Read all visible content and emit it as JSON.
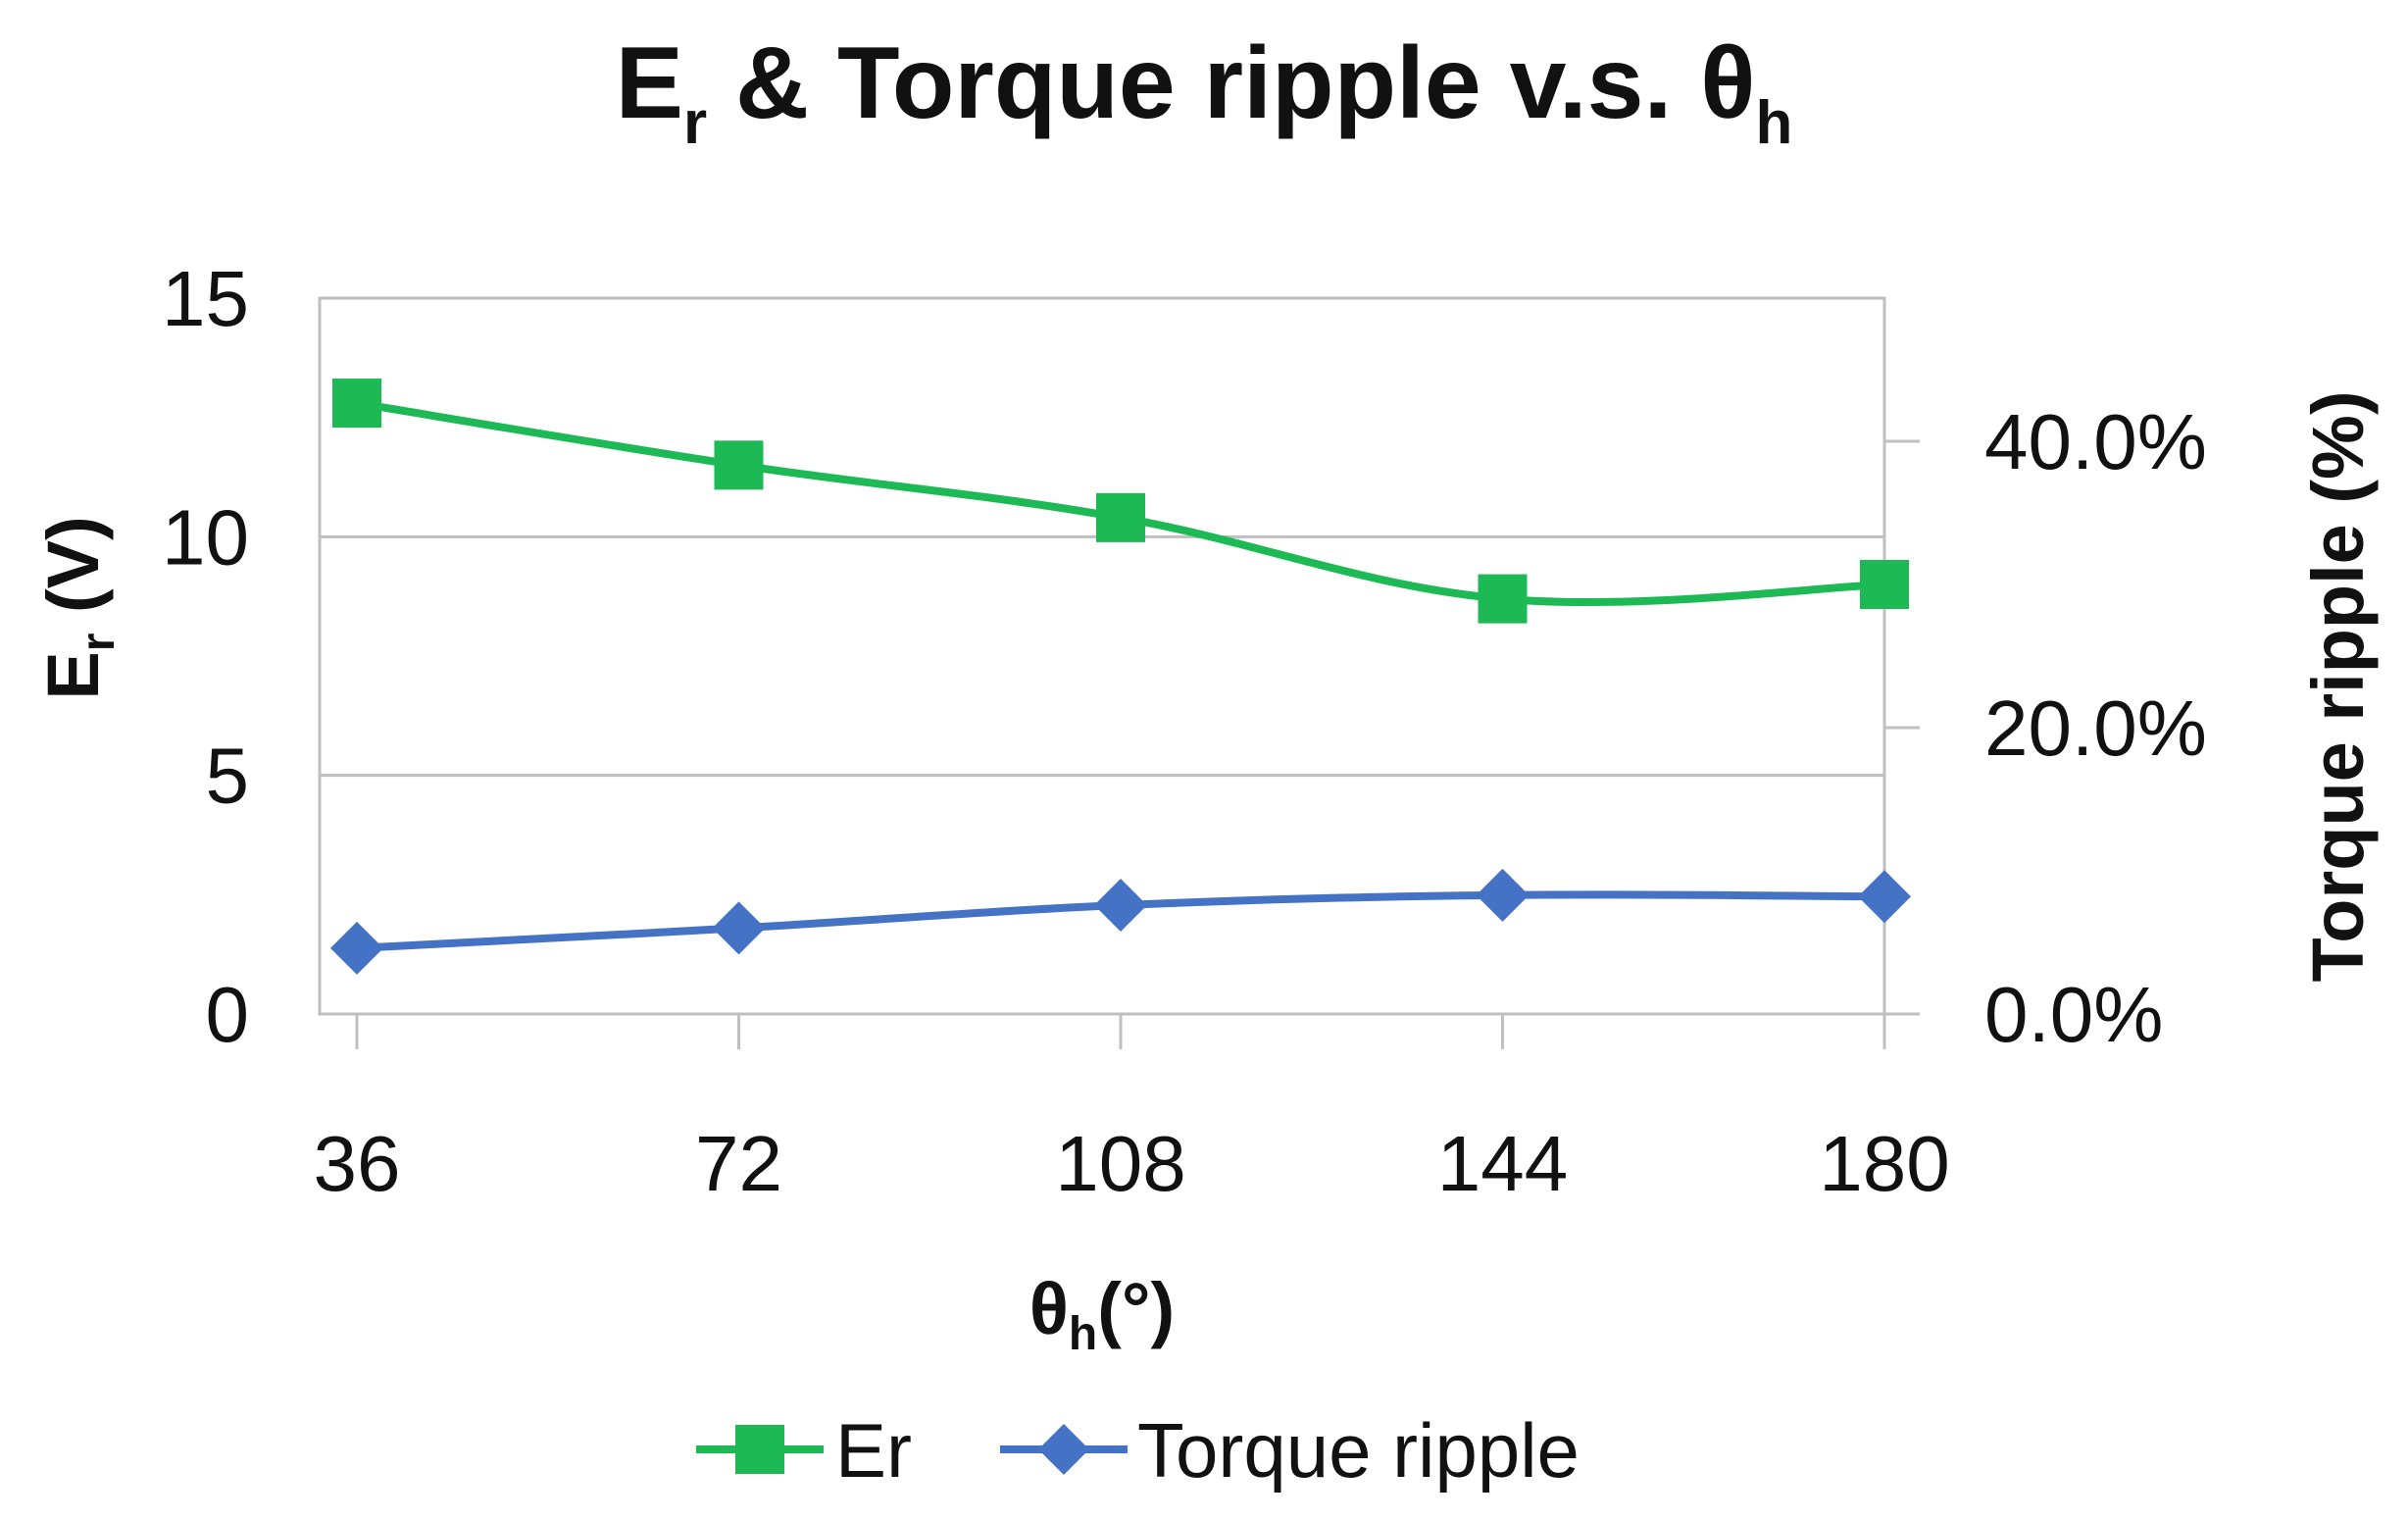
{
  "chart_data": {
    "type": "line",
    "title": {
      "main": "E",
      "sub": "r",
      "rest": " & Torque ripple v.s. θ",
      "sub2": "h"
    },
    "xlabel": {
      "main": "θ",
      "sub": "h",
      "rest": "(°)"
    },
    "ylabel": {
      "main": "E",
      "sub": "r",
      "rest": " (V)"
    },
    "y2label": "Torque  ripple (%)",
    "categories": [
      36,
      72,
      108,
      144,
      180
    ],
    "ylim": [
      0,
      15
    ],
    "yticks": [
      0,
      5,
      10,
      15
    ],
    "y2lim": [
      0,
      0.5
    ],
    "y2ticks": [
      0,
      0.2,
      0.4
    ],
    "y2tick_labels": [
      "0.0%",
      "20.0%",
      "40.0%"
    ],
    "series": [
      {
        "name": "Er",
        "axis": "left",
        "marker": "square",
        "color": "#1db954",
        "values": [
          12.8,
          11.5,
          10.4,
          8.7,
          9.0
        ]
      },
      {
        "name": "Torque ripple",
        "axis": "right",
        "marker": "diamond",
        "color": "#4472c4",
        "values": [
          0.046,
          0.06,
          0.076,
          0.083,
          0.082
        ]
      }
    ],
    "grid": true,
    "legend": "bottom"
  }
}
